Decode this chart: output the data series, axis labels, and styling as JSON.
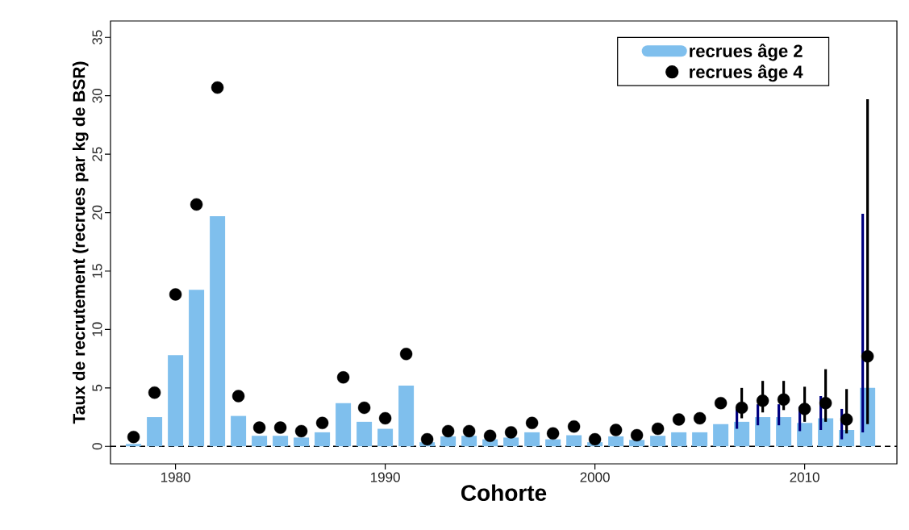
{
  "chart_data": {
    "type": "bar",
    "xlabel": "Cohorte",
    "ylabel": "Taux de recrutement (recrues par kg de BSR)",
    "x": [
      1978,
      1979,
      1980,
      1981,
      1982,
      1983,
      1984,
      1985,
      1986,
      1987,
      1988,
      1989,
      1990,
      1991,
      1992,
      1993,
      1994,
      1995,
      1996,
      1997,
      1998,
      1999,
      2000,
      2001,
      2002,
      2003,
      2004,
      2005,
      2006,
      2007,
      2008,
      2009,
      2010,
      2011,
      2012,
      2013
    ],
    "xlim": [
      1976.9,
      2014.4
    ],
    "xticks": [
      1980,
      1990,
      2000,
      2010
    ],
    "ylim": [
      -1.5,
      36.4
    ],
    "yticks": [
      0,
      5,
      10,
      15,
      20,
      25,
      30,
      35
    ],
    "legend": "top right",
    "ref_lines": [
      {
        "axis": "y",
        "value": 0,
        "line_style": "dashed",
        "color": "#000000"
      }
    ],
    "series": [
      {
        "name": "recrues âge 2",
        "color": "#7fbfed",
        "values": [
          0.2,
          2.5,
          7.8,
          13.4,
          19.7,
          2.6,
          0.9,
          0.9,
          0.75,
          1.2,
          3.7,
          2.1,
          1.5,
          5.2,
          0.35,
          0.85,
          0.9,
          0.6,
          0.75,
          1.2,
          0.6,
          0.95,
          0.35,
          0.85,
          0.55,
          0.9,
          1.2,
          1.2,
          1.9,
          2.1,
          2.5,
          2.5,
          2.0,
          2.4,
          1.4,
          5.0
        ],
        "errors": [
          null,
          null,
          null,
          null,
          null,
          null,
          null,
          null,
          null,
          null,
          null,
          null,
          null,
          null,
          null,
          null,
          null,
          null,
          null,
          null,
          null,
          null,
          null,
          null,
          null,
          null,
          null,
          null,
          null,
          [
            1.5,
            3.2
          ],
          [
            1.8,
            3.6
          ],
          [
            1.8,
            3.6
          ],
          [
            1.3,
            3.4
          ],
          [
            1.4,
            4.3
          ],
          [
            0.6,
            3.2
          ],
          [
            1.2,
            19.9
          ]
        ]
      },
      {
        "name": "recrues âge 4",
        "type": "scatter",
        "color": "#000000",
        "values": [
          0.8,
          4.6,
          13.0,
          20.7,
          30.7,
          4.3,
          1.6,
          1.6,
          1.3,
          2.0,
          5.9,
          3.3,
          2.4,
          7.9,
          0.6,
          1.3,
          1.3,
          0.9,
          1.2,
          2.0,
          1.1,
          1.7,
          0.6,
          1.4,
          0.95,
          1.5,
          2.3,
          2.4,
          3.7,
          3.3,
          3.9,
          4.0,
          3.2,
          3.7,
          2.3,
          7.7
        ],
        "errors": [
          null,
          null,
          null,
          null,
          null,
          null,
          null,
          null,
          null,
          null,
          null,
          null,
          null,
          null,
          null,
          null,
          null,
          null,
          null,
          null,
          null,
          null,
          null,
          null,
          null,
          null,
          null,
          null,
          null,
          [
            2.4,
            5.0
          ],
          [
            2.9,
            5.6
          ],
          [
            3.1,
            5.6
          ],
          [
            2.1,
            5.1
          ],
          [
            2.1,
            6.6
          ],
          [
            1.1,
            4.9
          ],
          [
            1.9,
            29.7
          ]
        ]
      }
    ]
  }
}
